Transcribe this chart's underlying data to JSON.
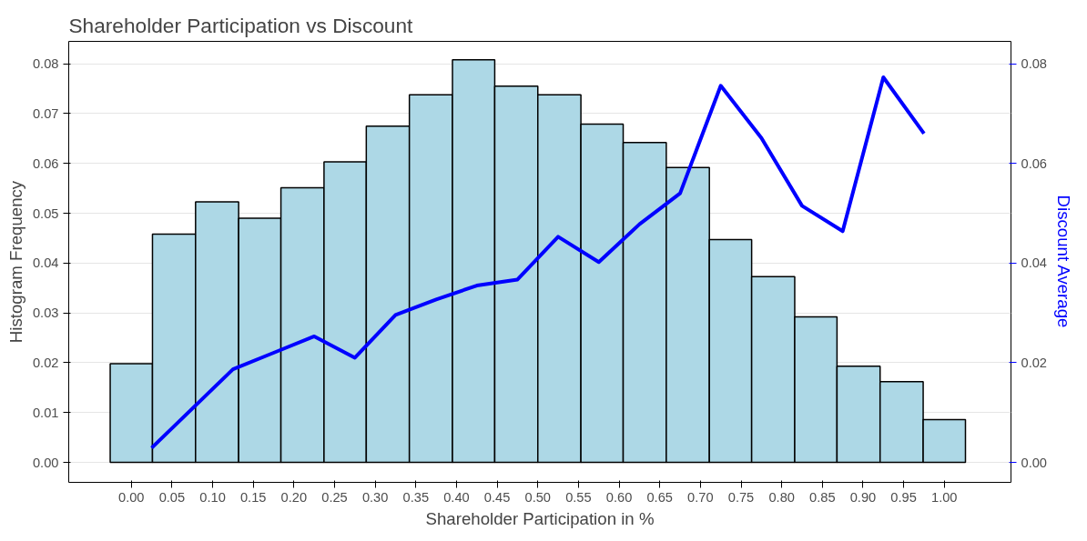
{
  "chart_data": {
    "type": "histogram",
    "title": "Shareholder Participation vs Discount",
    "xlabel": "Shareholder Participation in %",
    "ylabel": "Histogram Frequency",
    "y2label": "Discount Average",
    "xlim": [
      -0.077,
      1.082
    ],
    "xticks": [
      {
        "value": 0,
        "label": "0.00"
      },
      0.05,
      {
        "value": 0.1,
        "label": "0.10"
      },
      0.15,
      {
        "value": 0.2,
        "label": "0.20"
      },
      0.25,
      {
        "value": 0.3,
        "label": "0.30"
      },
      0.35,
      {
        "value": 0.4,
        "label": "0.40"
      },
      0.45,
      {
        "value": 0.5,
        "label": "0.50"
      },
      0.55,
      {
        "value": 0.6,
        "label": "0.60"
      },
      0.65,
      {
        "value": 0.7,
        "label": "0.70"
      },
      0.75,
      {
        "value": 0.8,
        "label": "0.80"
      },
      0.85,
      {
        "value": 0.9,
        "label": "0.90"
      },
      0.95,
      {
        "value": 1,
        "label": "1.00"
      }
    ],
    "ylim": [
      -0.004,
      0.0845
    ],
    "yticks": [
      {
        "value": 0,
        "label": "0.00"
      },
      0.01,
      0.02,
      0.03,
      0.04,
      0.05,
      0.06,
      0.07,
      0.08
    ],
    "y2lim": [
      -0.004,
      0.0845
    ],
    "y2ticks": [
      {
        "value": 0,
        "label": "0.00"
      },
      0.02,
      0.04,
      0.06,
      0.08
    ],
    "grid": "y",
    "series": [
      {
        "color": "#add8e6",
        "bins": [
          -0.026,
          0.026,
          0.079,
          0.132,
          0.184,
          0.237,
          0.289,
          0.342,
          0.395,
          0.447,
          0.5,
          0.553,
          0.605,
          0.658,
          0.711,
          0.763,
          0.816,
          0.868,
          0.921,
          0.974,
          1.026
        ],
        "values": [
          0.0198,
          0.0458,
          0.0523,
          0.049,
          0.0551,
          0.0603,
          0.0675,
          0.0738,
          0.0808,
          0.0755,
          0.0738,
          0.0679,
          0.0642,
          0.0592,
          0.0447,
          0.0373,
          0.0292,
          0.0193,
          0.0162,
          0.0086
        ]
      },
      {
        "type": "line",
        "axis": "y2",
        "color": "#0000ff",
        "x": [
          0.025,
          0.075,
          0.125,
          0.175,
          0.225,
          0.275,
          0.325,
          0.375,
          0.425,
          0.475,
          0.525,
          0.575,
          0.625,
          0.675,
          0.725,
          0.775,
          0.825,
          0.875,
          0.925,
          0.975
        ],
        "values": [
          0.0029,
          0.0108,
          0.0187,
          0.022,
          0.0253,
          0.021,
          0.0296,
          0.0327,
          0.0355,
          0.0367,
          0.0453,
          0.0402,
          0.0478,
          0.054,
          0.0756,
          0.0651,
          0.0515,
          0.0464,
          0.0773,
          0.066
        ]
      }
    ]
  }
}
